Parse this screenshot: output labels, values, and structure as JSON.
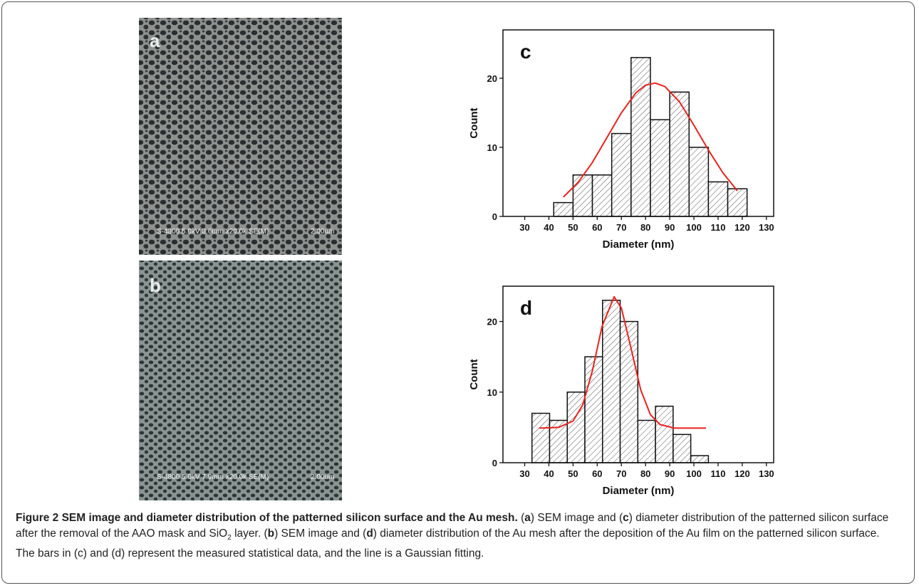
{
  "panels": [
    {
      "label": "a",
      "info": "S-4800 5.0kV 8.6mm x20.0k SE(M)",
      "scale": "2.00um"
    },
    {
      "label": "b",
      "info": "S-4800 5.0kV 7.9mm x20.0k SE(M)",
      "scale": "2.00um"
    }
  ],
  "chart_data": [
    {
      "type": "histogram",
      "panel_label": "c",
      "x_label": "Diameter (nm)",
      "y_label": "Count",
      "bins": [
        42,
        50,
        58,
        66,
        74,
        82,
        90,
        98,
        106,
        114,
        122
      ],
      "values": [
        2,
        6,
        6,
        12,
        23,
        14,
        18,
        10,
        5,
        4
      ],
      "fit": {
        "color": "#e8231e",
        "x": [
          46,
          52,
          58,
          64,
          70,
          76,
          80,
          84,
          88,
          94,
          100,
          106,
          112,
          118
        ],
        "values": [
          2.8,
          4.9,
          7.8,
          11.4,
          15.0,
          17.9,
          19.0,
          19.3,
          18.8,
          16.6,
          13.2,
          9.6,
          6.3,
          3.7
        ]
      },
      "xlim": [
        21,
        133
      ],
      "ylim": [
        0,
        27
      ],
      "xticks": [
        30,
        40,
        50,
        60,
        70,
        80,
        90,
        100,
        110,
        120,
        130
      ],
      "yticks": [
        0,
        10,
        20
      ]
    },
    {
      "type": "histogram",
      "panel_label": "d",
      "x_label": "Diameter (nm)",
      "y_label": "Count",
      "bins": [
        33,
        40.3,
        47.6,
        54.9,
        62.2,
        69.5,
        76.8,
        84.1,
        91.4,
        98.7,
        106
      ],
      "values": [
        7,
        6,
        10,
        15,
        23,
        20,
        6,
        8,
        4,
        1
      ],
      "fit": {
        "color": "#e8231e",
        "x": [
          36,
          44,
          50,
          54,
          58,
          62,
          67,
          70,
          74,
          78,
          82,
          86,
          92,
          98,
          105
        ],
        "values": [
          4.9,
          5.0,
          5.9,
          8.2,
          13.0,
          19.3,
          23.5,
          21.9,
          16.2,
          10.3,
          6.8,
          5.4,
          4.9,
          4.9,
          4.9
        ]
      },
      "xlim": [
        21,
        133
      ],
      "ylim": [
        0,
        25
      ],
      "xticks": [
        30,
        40,
        50,
        60,
        70,
        80,
        90,
        100,
        110,
        120,
        130
      ],
      "yticks": [
        0,
        10,
        20
      ]
    }
  ],
  "caption": {
    "title": "Figure 2 SEM image and diameter distribution of the patterned silicon surface and the Au mesh.",
    "parts": [
      "(",
      "a",
      ") SEM image and (",
      "c",
      ") diameter distribution of the patterned silicon surface after the removal of the AAO mask and SiO",
      "2",
      " layer. (",
      "b",
      ") SEM image and (",
      "d",
      ") diameter distribution of the Au mesh after the deposition of the Au film on the patterned silicon surface. The bars in (c) and (d) represent the measured statistical data, and the line is a Gaussian fitting."
    ]
  }
}
